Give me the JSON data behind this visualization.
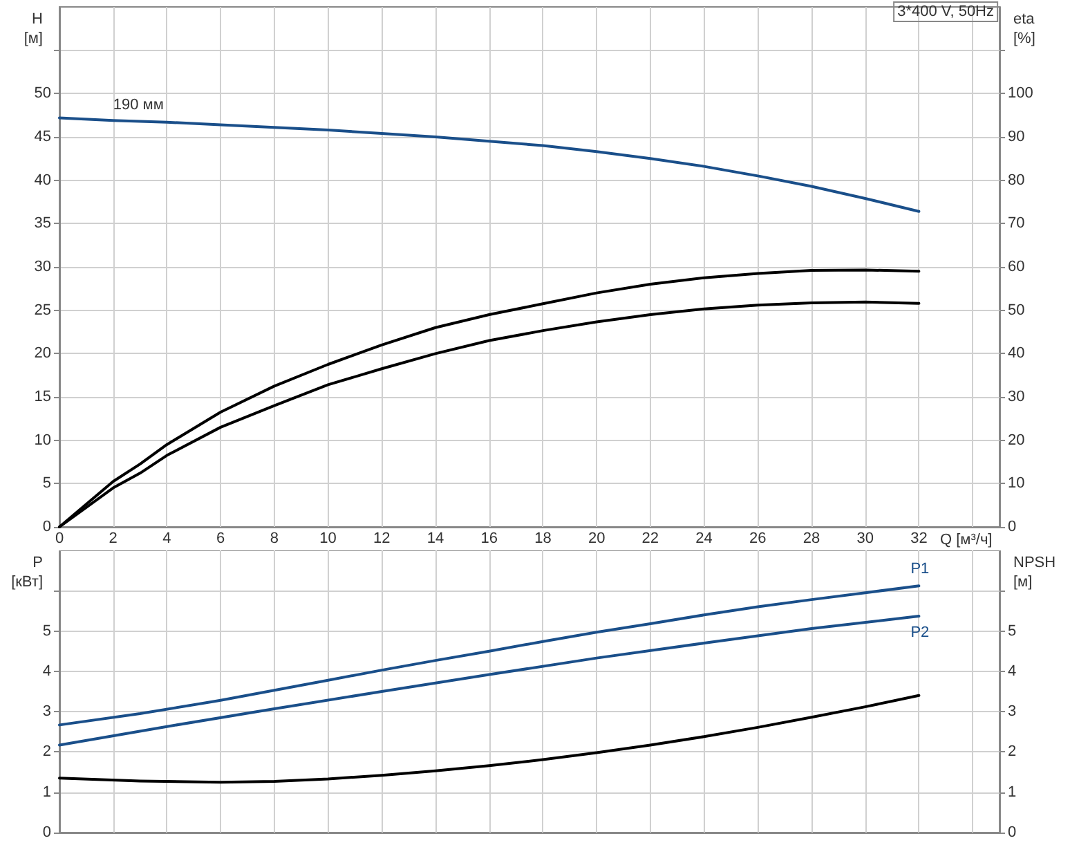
{
  "chart_data": [
    {
      "type": "line",
      "title": "3*400 V, 50Hz",
      "xlabel": "Q [м³/ч]",
      "ylabel": "H\n[м]",
      "y2label": "eta\n[%]",
      "xlim": [
        0,
        35
      ],
      "xticks": [
        0,
        2,
        4,
        6,
        8,
        10,
        12,
        14,
        16,
        18,
        20,
        22,
        24,
        26,
        28,
        30,
        32,
        {
          "value": 34,
          "label": null
        }
      ],
      "ylim": [
        0,
        60
      ],
      "yticks": [
        0,
        5,
        10,
        15,
        20,
        25,
        30,
        35,
        40,
        45,
        50,
        {
          "value": 55,
          "label": null
        }
      ],
      "y2lim": [
        0,
        120
      ],
      "y2ticks": [
        0,
        10,
        20,
        30,
        40,
        50,
        60,
        70,
        80,
        90,
        100,
        {
          "value": 110,
          "label": null
        }
      ],
      "grid": true,
      "marker": "none",
      "line_style": "solid",
      "series": [
        {
          "color": "#1a4f8a",
          "x": [
            0,
            2,
            4,
            6,
            8,
            10,
            12,
            14,
            16,
            18,
            20,
            22,
            24,
            26,
            28,
            30,
            32
          ],
          "values": [
            47.2,
            46.9,
            46.7,
            46.4,
            46.1,
            45.8,
            45.4,
            45.0,
            44.5,
            44.0,
            43.3,
            42.5,
            41.6,
            40.5,
            39.3,
            37.9,
            36.4
          ]
        },
        {
          "color": "#000000",
          "axis": "y2",
          "x": [
            0,
            2,
            3,
            4,
            6,
            8,
            10,
            12,
            14,
            16,
            18,
            20,
            22,
            24,
            26,
            28,
            30,
            32
          ],
          "values": [
            0,
            10.5,
            14.5,
            19,
            26.5,
            32.5,
            37.5,
            42,
            46,
            49,
            51.5,
            54,
            56,
            57.5,
            58.5,
            59.2,
            59.3,
            59
          ]
        },
        {
          "color": "#000000",
          "axis": "y2",
          "x": [
            0,
            2,
            3,
            4,
            6,
            8,
            10,
            12,
            14,
            16,
            18,
            20,
            22,
            24,
            26,
            28,
            30,
            32
          ],
          "values": [
            0,
            9,
            12.4,
            16.5,
            23,
            28,
            32.8,
            36.5,
            40,
            43,
            45.3,
            47.3,
            49,
            50.3,
            51.2,
            51.7,
            51.9,
            51.6
          ]
        }
      ],
      "annotations": [
        {
          "text": "190 мм",
          "x": 2,
          "y": 47.5
        }
      ]
    },
    {
      "type": "line",
      "ylabel": "P\n[кВт]",
      "y2label": "NPSH\n[м]",
      "xlim": [
        0,
        35
      ],
      "xticks": [
        0,
        2,
        4,
        6,
        8,
        10,
        12,
        14,
        16,
        18,
        20,
        22,
        24,
        26,
        28,
        30,
        32,
        34
      ],
      "ylim": [
        0,
        7
      ],
      "yticks": [
        0,
        1,
        2,
        3,
        4,
        5,
        {
          "value": 6,
          "label": null
        }
      ],
      "y2lim": [
        0,
        7
      ],
      "y2ticks": [
        0,
        1,
        2,
        3,
        4,
        5,
        {
          "value": 6,
          "label": null
        }
      ],
      "grid": true,
      "marker": "none",
      "line_style": "solid",
      "tick_labels": "y",
      "series": [
        {
          "name": "P1",
          "color": "#1a4f8a",
          "x": [
            0,
            3,
            6,
            8,
            10,
            12,
            14,
            16,
            18,
            20,
            22,
            24,
            26,
            28,
            30,
            32
          ],
          "values": [
            2.67,
            2.95,
            3.28,
            3.53,
            3.78,
            4.03,
            4.27,
            4.5,
            4.74,
            4.97,
            5.18,
            5.4,
            5.6,
            5.78,
            5.95,
            6.12
          ]
        },
        {
          "name": "P2",
          "color": "#1a4f8a",
          "x": [
            0,
            4,
            8,
            12,
            16,
            20,
            24,
            28,
            32
          ],
          "values": [
            2.17,
            2.63,
            3.07,
            3.5,
            3.92,
            4.33,
            4.7,
            5.06,
            5.37
          ]
        },
        {
          "color": "#000000",
          "axis": "y2",
          "x": [
            0,
            3,
            6,
            8,
            10,
            12,
            14,
            16,
            18,
            20,
            22,
            24,
            26,
            28,
            30,
            32
          ],
          "values": [
            1.35,
            1.28,
            1.25,
            1.27,
            1.33,
            1.42,
            1.53,
            1.66,
            1.81,
            1.98,
            2.17,
            2.38,
            2.61,
            2.86,
            3.12,
            3.4
          ]
        }
      ]
    }
  ]
}
